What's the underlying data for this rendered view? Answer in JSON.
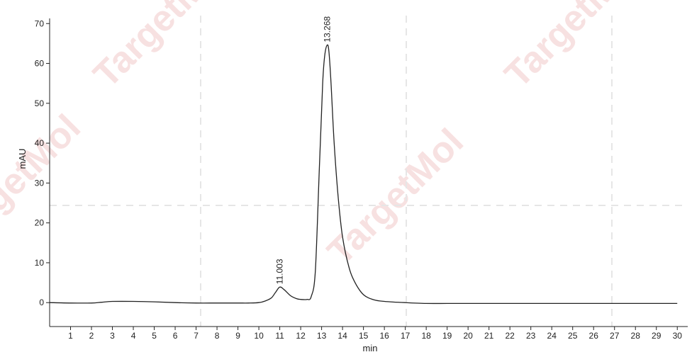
{
  "chart_data": {
    "type": "line",
    "xlabel": "min",
    "ylabel": "mAU",
    "xlim": [
      0,
      30.5
    ],
    "ylim": [
      -6,
      72
    ],
    "x_ticks": [
      1,
      2,
      3,
      4,
      5,
      6,
      7,
      8,
      9,
      10,
      11,
      12,
      13,
      14,
      15,
      16,
      17,
      18,
      19,
      20,
      21,
      22,
      23,
      24,
      25,
      26,
      27,
      28,
      29,
      30
    ],
    "y_ticks": [
      0,
      10,
      20,
      30,
      40,
      50,
      60,
      70
    ],
    "grid": "dashed-light",
    "watermark": "TargetMol",
    "colors": {
      "line": "#222222",
      "grid": "#e6e6e6",
      "watermark": "#f2c9c9"
    },
    "series": [
      {
        "values_x": [
          0,
          1,
          2,
          2.5,
          3,
          4,
          5,
          6,
          7,
          8,
          9,
          9.5,
          10,
          10.3,
          10.6,
          10.8,
          11.0,
          11.2,
          11.5,
          11.8,
          12.0,
          12.3,
          12.5,
          12.7,
          12.9,
          13.05,
          13.15,
          13.268,
          13.35,
          13.45,
          13.6,
          13.8,
          14.0,
          14.3,
          14.6,
          15.0,
          15.5,
          16.0,
          17.0,
          18.0,
          19.0,
          20.0,
          20.2,
          30.0
        ],
        "values_y": [
          0,
          -0.1,
          -0.1,
          0.1,
          0.3,
          0.3,
          0.2,
          0,
          -0.1,
          -0.1,
          -0.1,
          -0.1,
          0,
          0.4,
          1.2,
          2.6,
          3.9,
          3.3,
          1.8,
          1.0,
          0.8,
          0.8,
          1.5,
          8,
          35,
          55,
          62,
          64.6,
          63,
          55,
          40,
          26,
          16.5,
          9,
          5,
          2.0,
          0.7,
          0.3,
          0,
          -0.2,
          -0.2,
          -0.2,
          -0.2,
          -0.2
        ]
      }
    ],
    "peaks": [
      {
        "x": 11.003,
        "y": 3.9,
        "label": "11.003"
      },
      {
        "x": 13.268,
        "y": 64.6,
        "label": "13.268"
      }
    ]
  }
}
